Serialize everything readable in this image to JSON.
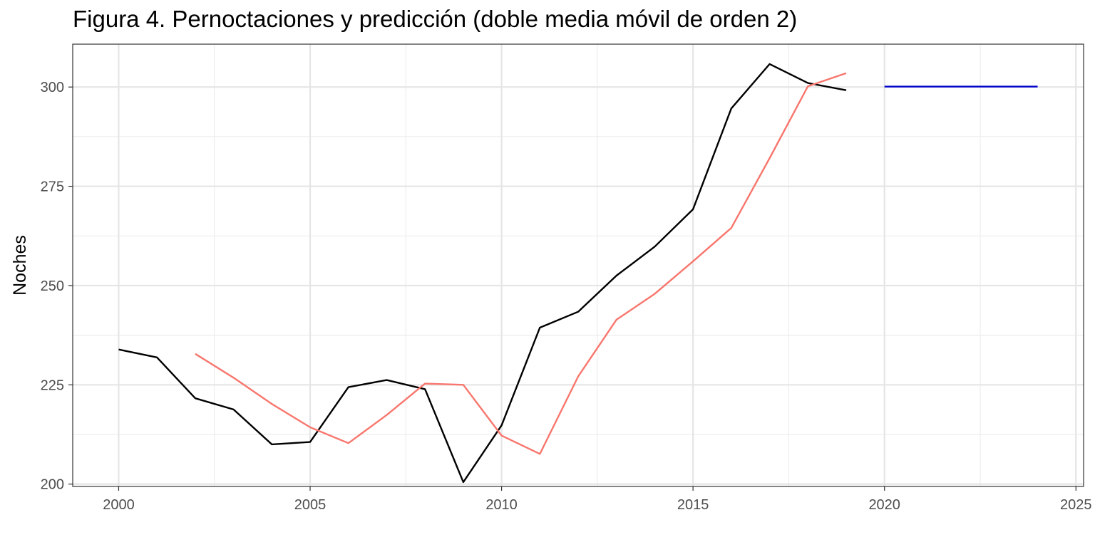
{
  "chart_data": {
    "type": "line",
    "title": "Figura 4. Pernoctaciones y predicción (doble media móvil de orden 2)",
    "xlabel": "",
    "ylabel": "Noches",
    "xlim": [
      1998.8,
      2025.2
    ],
    "ylim": [
      199.4,
      310.8
    ],
    "x_ticks": [
      2000,
      2005,
      2010,
      2015,
      2020,
      2025
    ],
    "y_ticks": [
      200,
      225,
      250,
      275,
      300
    ],
    "grid": true,
    "legend": "none",
    "series": [
      {
        "color": "#000000",
        "x": [
          2000,
          2001,
          2002,
          2003,
          2004,
          2005,
          2006,
          2007,
          2008,
          2009,
          2010,
          2011,
          2012,
          2013,
          2014,
          2015,
          2016,
          2017,
          2018,
          2019
        ],
        "y": [
          233.9,
          231.9,
          221.6,
          218.8,
          210.0,
          210.6,
          224.4,
          226.2,
          223.9,
          200.5,
          214.8,
          239.4,
          243.4,
          252.5,
          259.8,
          269.2,
          294.6,
          305.8,
          301.0,
          299.2
        ]
      },
      {
        "color": "#f8766d",
        "x": [
          2002,
          2003,
          2004,
          2005,
          2006,
          2007,
          2008,
          2009,
          2010,
          2011,
          2012,
          2013,
          2014,
          2015,
          2016,
          2017,
          2018,
          2019
        ],
        "y": [
          232.8,
          226.8,
          220.2,
          214.3,
          210.3,
          217.4,
          225.3,
          225.0,
          212.2,
          207.6,
          227.1,
          241.4,
          247.9,
          256.1,
          264.5,
          282.1,
          300.2,
          303.5
        ]
      },
      {
        "color": "#0000cd",
        "x": [
          2020,
          2021,
          2022,
          2023,
          2024
        ],
        "y": [
          300.1,
          300.1,
          300.1,
          300.1,
          300.1
        ]
      }
    ]
  }
}
